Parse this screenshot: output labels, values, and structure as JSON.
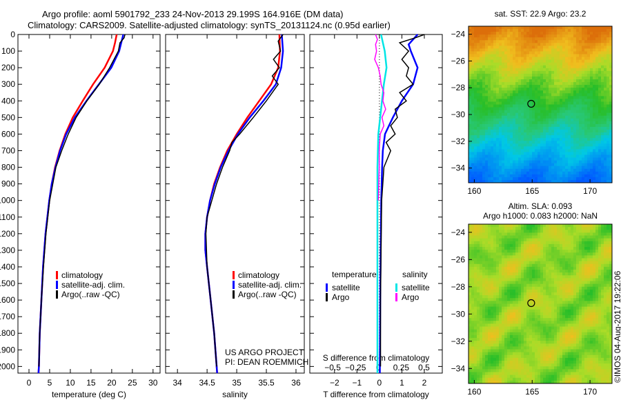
{
  "header": {
    "title_line1": "Argo profile: aoml 5901792_233 24-Nov-2013 29.199S 164.916E (DM data)",
    "title_line2": "Climatology: CARS2009. Satellite-adjusted climatology: synTS_20131124.nc (0.95d earlier)"
  },
  "credit": "©IMOS 04-Aug-2017 19:22:06",
  "annotation": {
    "line1": "US ARGO PROJECT",
    "line2": "PI: DEAN ROEMMICH"
  },
  "colors": {
    "climatology": "#ff0000",
    "satellite": "#0000ff",
    "argo": "#000000",
    "s_satellite": "#00e5e5",
    "s_argo": "#ff00ff"
  },
  "chart_data": [
    {
      "type": "line",
      "id": "temperature",
      "xlabel": "temperature (deg C)",
      "ylabel": "",
      "xlim": [
        -2.67,
        31.7
      ],
      "ylim": [
        2040,
        0
      ],
      "xticks": [
        0,
        5,
        10,
        15,
        20,
        25,
        30
      ],
      "yticks": [
        0,
        100,
        200,
        300,
        400,
        500,
        600,
        700,
        800,
        900,
        1000,
        1100,
        1200,
        1300,
        1400,
        1500,
        1600,
        1700,
        1800,
        1900,
        2000
      ],
      "legend": [
        "climatology",
        "satellite-adj. clim.",
        "Argo(..raw -QC)"
      ],
      "series": [
        {
          "name": "climatology",
          "color": "#ff0000",
          "depth": [
            0,
            50,
            100,
            200,
            300,
            400,
            500,
            600,
            700,
            800,
            900,
            1000,
            1200,
            1400,
            1600,
            1800,
            2000,
            2040
          ],
          "values": [
            21.2,
            20.8,
            20.3,
            18.3,
            15.5,
            13.0,
            10.6,
            8.8,
            7.4,
            6.3,
            5.5,
            4.9,
            4.0,
            3.4,
            3.0,
            2.6,
            2.4,
            2.3
          ]
        },
        {
          "name": "satellite-adj. clim.",
          "color": "#0000ff",
          "depth": [
            0,
            50,
            100,
            200,
            300,
            400,
            500,
            600,
            700,
            800,
            900,
            1000,
            1200,
            1400,
            1600,
            1800,
            2000,
            2040
          ],
          "values": [
            22.8,
            22.3,
            21.8,
            19.9,
            16.9,
            13.9,
            11.1,
            9.0,
            7.5,
            6.4,
            5.5,
            4.9,
            4.0,
            3.4,
            3.0,
            2.6,
            2.4,
            2.3
          ]
        },
        {
          "name": "Argo(..raw -QC)",
          "color": "#000000",
          "depth": [
            0,
            20,
            50,
            100,
            200,
            300,
            400,
            500,
            600,
            700,
            800,
            1000,
            1200,
            1400,
            1600,
            1800,
            2000
          ],
          "values": [
            23.2,
            23.0,
            22.0,
            21.6,
            19.5,
            17.0,
            14.0,
            11.4,
            9.5,
            7.9,
            6.5,
            5.0,
            4.1,
            3.5,
            3.0,
            2.6,
            2.4
          ]
        }
      ]
    },
    {
      "type": "line",
      "id": "salinity",
      "xlabel": "salinity",
      "xlim": [
        33.8,
        36.14
      ],
      "ylim": [
        2040,
        0
      ],
      "xticks": [
        34,
        34.5,
        35,
        35.5,
        36
      ],
      "series": [
        {
          "name": "climatology",
          "color": "#ff0000",
          "depth": [
            0,
            100,
            200,
            300,
            400,
            500,
            600,
            700,
            800,
            900,
            1000,
            1100,
            1200,
            1300,
            1400,
            1600,
            1800,
            2040
          ],
          "values": [
            35.72,
            35.73,
            35.7,
            35.58,
            35.38,
            35.18,
            35.0,
            34.84,
            34.72,
            34.62,
            34.55,
            34.5,
            34.47,
            34.47,
            34.5,
            34.56,
            34.62,
            34.67
          ]
        },
        {
          "name": "satellite-adj. clim.",
          "color": "#0000ff",
          "depth": [
            0,
            100,
            200,
            300,
            400,
            500,
            600,
            700,
            800,
            900,
            1000,
            1100,
            1200,
            1300,
            1400,
            1600,
            1800,
            2040
          ],
          "values": [
            35.76,
            35.78,
            35.75,
            35.66,
            35.45,
            35.22,
            35.02,
            34.86,
            34.73,
            34.63,
            34.55,
            34.5,
            34.47,
            34.47,
            34.5,
            34.56,
            34.62,
            34.67
          ]
        },
        {
          "name": "Argo(..raw -QC)",
          "color": "#000000",
          "depth": [
            0,
            40,
            100,
            150,
            200,
            250,
            300,
            400,
            500,
            600,
            650,
            700,
            800,
            900,
            1000,
            1100,
            1200,
            1400,
            1600,
            1800,
            2000
          ],
          "values": [
            35.78,
            35.7,
            35.74,
            35.62,
            35.72,
            35.6,
            35.7,
            35.5,
            35.28,
            35.05,
            34.92,
            34.88,
            34.76,
            34.66,
            34.58,
            34.5,
            34.48,
            34.5,
            34.56,
            34.62,
            34.66
          ]
        }
      ]
    },
    {
      "type": "line",
      "id": "difference",
      "xlabel": "T difference from climatology",
      "xlabel2": "S difference from climatology",
      "xlim": [
        -3.1,
        2.8
      ],
      "ylim": [
        2040,
        0
      ],
      "xticks": [
        -2,
        -1,
        0,
        1,
        2
      ],
      "s_xlim": [
        -0.75,
        0.7
      ],
      "s_xticks": [
        -0.5,
        -0.25,
        0,
        0.25,
        0.5
      ],
      "legend_t_title": "temperature",
      "legend_s_title": "salinity",
      "legend_t": [
        "satellite",
        "Argo"
      ],
      "legend_s": [
        "satellite",
        "Argo"
      ],
      "series": [
        {
          "name": "T satellite",
          "axis": "T",
          "color": "#0000ff",
          "depth": [
            0,
            30,
            60,
            100,
            200,
            300,
            400,
            500,
            600,
            700,
            800,
            1000,
            1500,
            2040
          ],
          "values": [
            1.7,
            1.5,
            1.3,
            1.4,
            1.7,
            1.5,
            1.0,
            0.6,
            0.25,
            0.15,
            0.12,
            0.08,
            0.04,
            0.02
          ]
        },
        {
          "name": "T Argo",
          "axis": "T",
          "color": "#000000",
          "depth": [
            0,
            20,
            50,
            100,
            150,
            200,
            250,
            300,
            350,
            400,
            450,
            500,
            550,
            600,
            650,
            700,
            800,
            900,
            1000,
            1200,
            1600,
            2000
          ],
          "values": [
            2.0,
            1.6,
            0.9,
            1.3,
            1.0,
            1.3,
            1.2,
            1.5,
            0.9,
            1.2,
            0.7,
            0.8,
            0.5,
            0.7,
            0.3,
            0.5,
            0.2,
            0.15,
            0.1,
            0.08,
            0.05,
            0.05
          ]
        },
        {
          "name": "S satellite",
          "axis": "S",
          "color": "#00e5e5",
          "depth": [
            0,
            50,
            100,
            200,
            300,
            400,
            500,
            600,
            800,
            1000,
            1500,
            2040
          ],
          "values": [
            0.03,
            0.05,
            0.07,
            0.09,
            0.06,
            0.04,
            0.02,
            0.0,
            -0.01,
            -0.01,
            -0.01,
            -0.01
          ]
        },
        {
          "name": "S Argo",
          "axis": "S",
          "color": "#ff00ff",
          "depth": [
            0,
            30,
            60,
            100,
            150,
            200,
            250,
            300,
            350,
            400,
            450,
            500,
            550,
            600,
            700,
            800,
            1000
          ],
          "values": [
            -0.03,
            -0.01,
            -0.03,
            -0.02,
            -0.04,
            0.0,
            0.02,
            0.03,
            0.06,
            0.05,
            0.08,
            0.04,
            0.06,
            0.02,
            0.01,
            0.01,
            0.0
          ]
        }
      ]
    },
    {
      "type": "heatmap",
      "id": "sst_map",
      "title": "sat. SST: 22.9 Argo: 23.2",
      "xlim": [
        159.5,
        171.9
      ],
      "ylim": [
        -35.1,
        -23.4
      ],
      "xticks": [
        160,
        165,
        170
      ],
      "yticks": [
        -24,
        -26,
        -28,
        -30,
        -32,
        -34
      ],
      "marker": {
        "lon": 164.916,
        "lat": -29.199
      }
    },
    {
      "type": "heatmap",
      "id": "sla_map",
      "title": "Altim. SLA: 0.093",
      "subtitle": "Argo h1000: 0.083 h2000: NaN",
      "xlim": [
        159.5,
        171.9
      ],
      "ylim": [
        -35.1,
        -23.4
      ],
      "xticks": [
        160,
        165,
        170
      ],
      "yticks": [
        -24,
        -26,
        -28,
        -30,
        -32,
        -34
      ],
      "marker": {
        "lon": 164.916,
        "lat": -29.199
      }
    }
  ]
}
